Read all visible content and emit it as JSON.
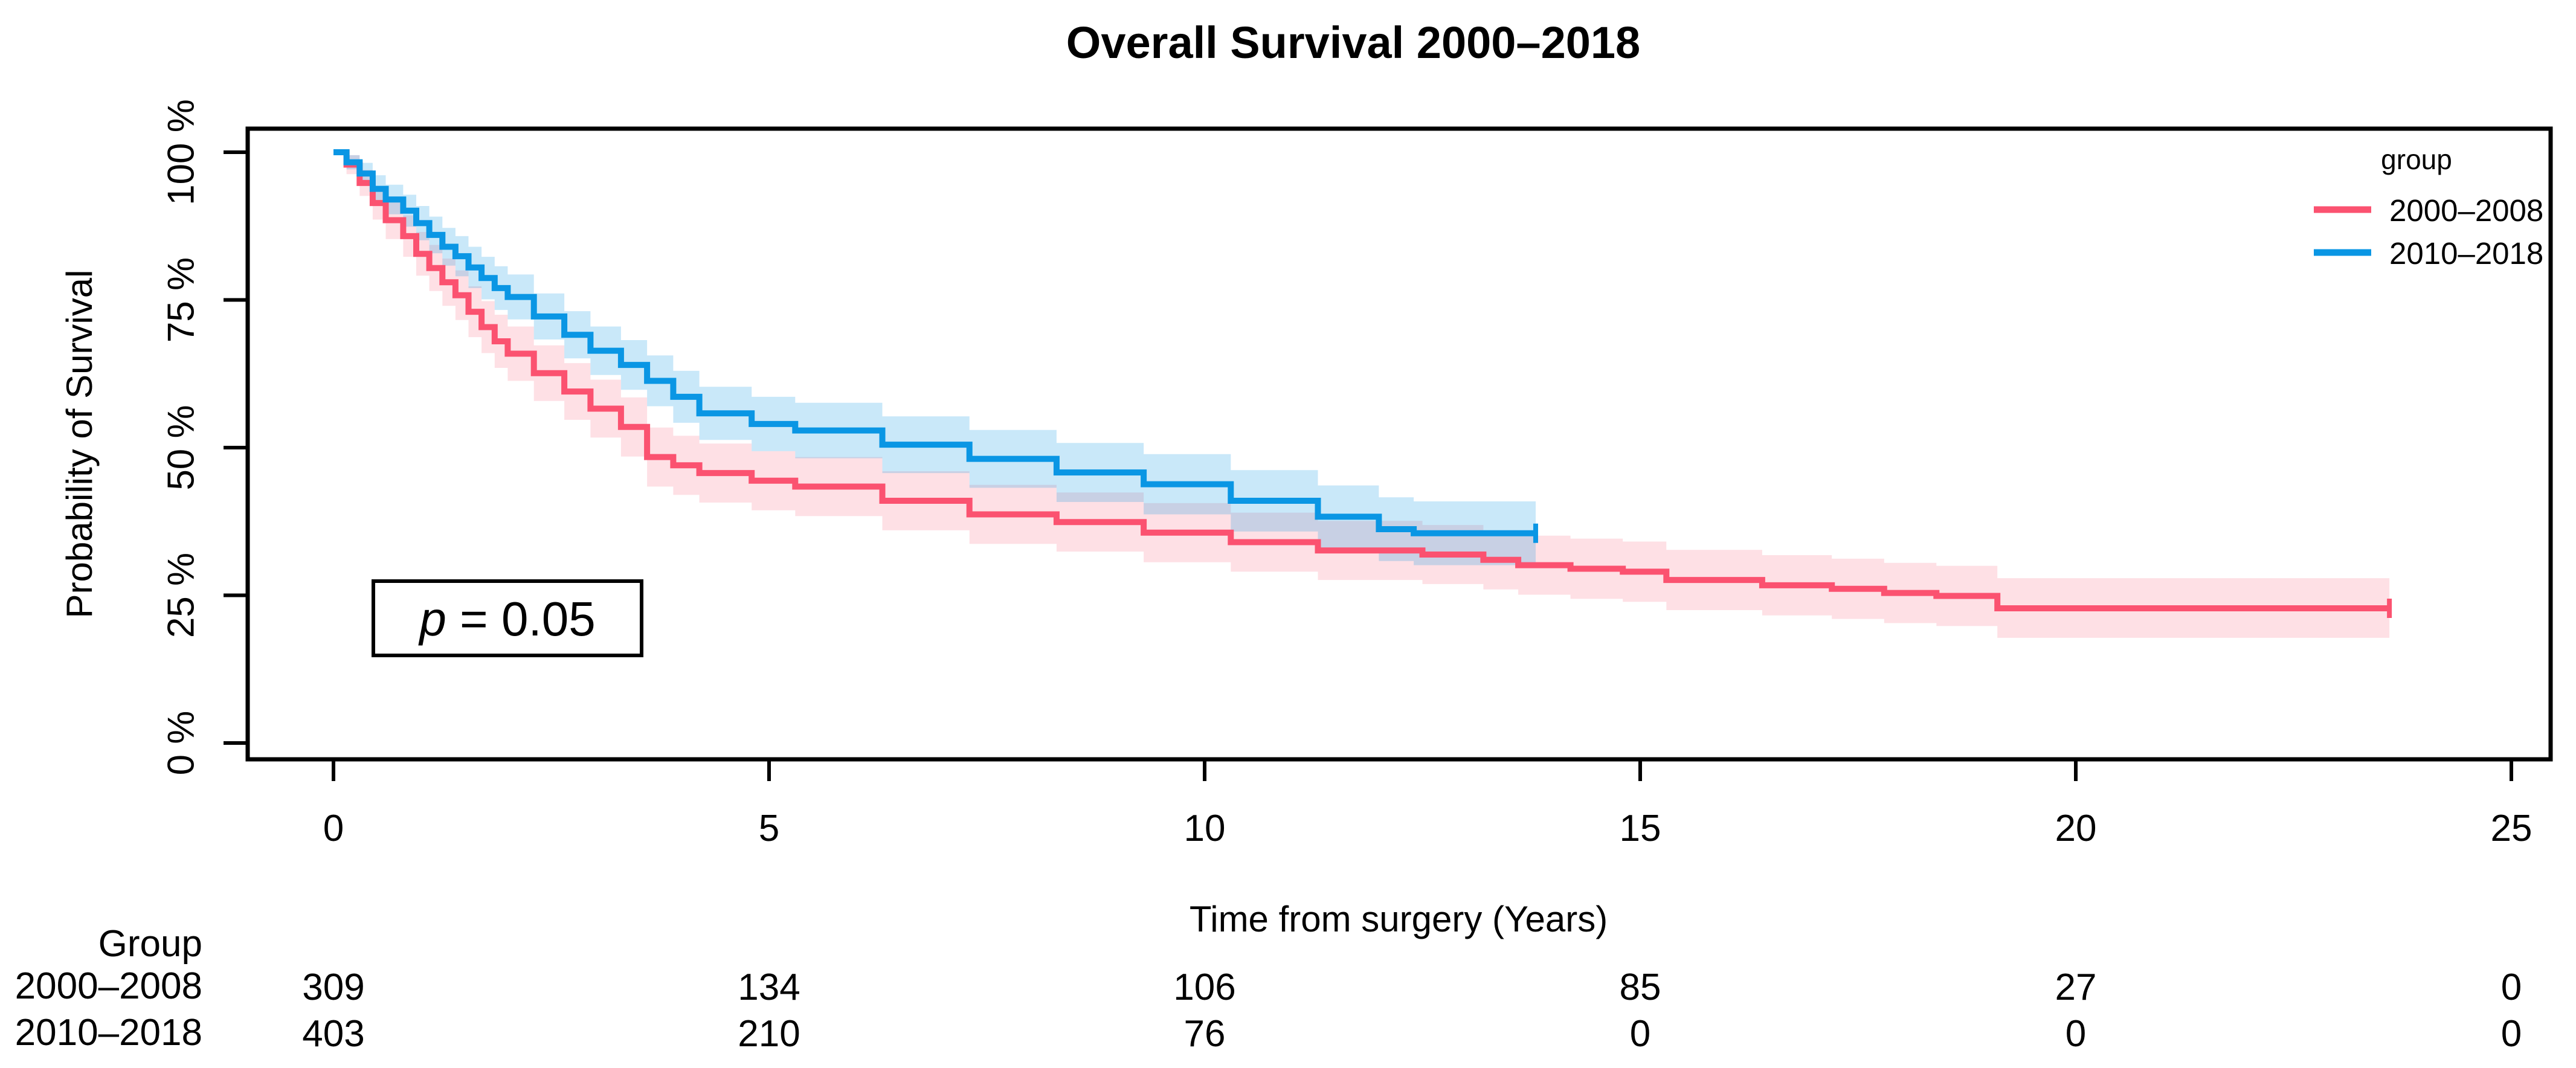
{
  "page": {
    "background": "#ffffff"
  },
  "chart_data": {
    "type": "line",
    "subtype": "kaplan-meier-step-curves-with-confidence-bands",
    "title": "Overall Survival 2000–2018",
    "xlabel": "Time from surgery (Years)",
    "ylabel": "Probability of Survival",
    "xlim": [
      0,
      25.5
    ],
    "ylim_percent": [
      0,
      100
    ],
    "grid": false,
    "x_ticks": [
      0,
      5,
      10,
      15,
      20,
      25
    ],
    "y_ticks": [
      {
        "value": 0,
        "label": "0 %"
      },
      {
        "value": 25,
        "label": "25 %"
      },
      {
        "value": 50,
        "label": "50 %"
      },
      {
        "value": 75,
        "label": "75 %"
      },
      {
        "value": 100,
        "label": "100 %"
      }
    ],
    "legend": {
      "title": "group",
      "position": "top-right-inside"
    },
    "pvalue_label": "p = 0.05",
    "colors": {
      "group_2000_2008": "#fb5270",
      "group_2010_2018": "#0a96e4",
      "axis": "#000000",
      "background": "#ffffff"
    },
    "series_point_format": [
      "time_years",
      "survival_pct",
      "ci_low_pct",
      "ci_high_pct"
    ],
    "series": [
      {
        "name": "2000–2008",
        "color": "#fb5270",
        "band_opacity": 0.18,
        "censor_tick_at_end": true,
        "points": [
          [
            0,
            100,
            100,
            100
          ],
          [
            0.15,
            97.9,
            96.3,
            99.5
          ],
          [
            0.3,
            94.8,
            92.6,
            97.0
          ],
          [
            0.45,
            91.4,
            88.6,
            94.2
          ],
          [
            0.6,
            88.5,
            85.3,
            91.7
          ],
          [
            0.8,
            85.8,
            82.3,
            89.3
          ],
          [
            0.95,
            82.8,
            79.1,
            86.5
          ],
          [
            1.1,
            80.4,
            76.5,
            84.3
          ],
          [
            1.25,
            78.0,
            74.0,
            82.0
          ],
          [
            1.4,
            75.8,
            71.6,
            80.0
          ],
          [
            1.55,
            73.0,
            68.7,
            77.3
          ],
          [
            1.7,
            70.4,
            66.0,
            74.8
          ],
          [
            1.85,
            68.0,
            63.5,
            72.5
          ],
          [
            2.0,
            65.9,
            61.3,
            70.5
          ],
          [
            2.3,
            62.6,
            57.9,
            67.3
          ],
          [
            2.65,
            59.5,
            54.7,
            64.3
          ],
          [
            2.95,
            56.6,
            51.7,
            61.5
          ],
          [
            3.3,
            53.5,
            48.5,
            58.5
          ],
          [
            3.6,
            48.4,
            43.4,
            53.4
          ],
          [
            3.9,
            47.0,
            42.0,
            52.0
          ],
          [
            4.2,
            45.7,
            40.7,
            50.7
          ],
          [
            4.8,
            44.4,
            39.4,
            49.4
          ],
          [
            5.3,
            43.4,
            38.4,
            48.4
          ],
          [
            6.3,
            41.0,
            36.0,
            46.0
          ],
          [
            7.3,
            38.7,
            33.7,
            43.7
          ],
          [
            8.3,
            37.4,
            32.4,
            42.4
          ],
          [
            9.3,
            35.6,
            30.6,
            40.6
          ],
          [
            10.3,
            34.0,
            29.0,
            39.0
          ],
          [
            11.3,
            32.6,
            27.6,
            37.6
          ],
          [
            12.5,
            31.9,
            26.9,
            36.9
          ],
          [
            13.2,
            31.0,
            26.0,
            36.0
          ],
          [
            13.6,
            30.1,
            25.1,
            35.1
          ],
          [
            14.2,
            29.5,
            24.4,
            34.6
          ],
          [
            14.8,
            29.0,
            23.9,
            34.1
          ],
          [
            15.3,
            27.6,
            22.5,
            32.7
          ],
          [
            16.4,
            26.7,
            21.6,
            31.8
          ],
          [
            17.2,
            26.1,
            21.0,
            31.2
          ],
          [
            17.8,
            25.4,
            20.3,
            30.5
          ],
          [
            18.4,
            24.9,
            19.8,
            30.0
          ],
          [
            19.1,
            22.8,
            17.8,
            27.9
          ],
          [
            23.6,
            22.8,
            17.8,
            27.9
          ]
        ]
      },
      {
        "name": "2010–2018",
        "color": "#0a96e4",
        "band_opacity": 0.22,
        "censor_tick_at_end": true,
        "points": [
          [
            0,
            100,
            100,
            100
          ],
          [
            0.15,
            98.3,
            97.1,
            99.5
          ],
          [
            0.3,
            96.4,
            94.6,
            98.2
          ],
          [
            0.45,
            93.8,
            91.5,
            96.1
          ],
          [
            0.6,
            92.0,
            89.5,
            94.5
          ],
          [
            0.8,
            90.1,
            87.4,
            92.8
          ],
          [
            0.95,
            88.0,
            85.1,
            90.9
          ],
          [
            1.1,
            86.0,
            82.9,
            89.1
          ],
          [
            1.25,
            84.0,
            80.8,
            87.2
          ],
          [
            1.4,
            82.4,
            79.0,
            85.8
          ],
          [
            1.55,
            80.5,
            77.0,
            84.0
          ],
          [
            1.7,
            78.7,
            75.1,
            82.3
          ],
          [
            1.85,
            77.0,
            73.3,
            80.7
          ],
          [
            2.0,
            75.5,
            71.7,
            79.3
          ],
          [
            2.3,
            72.2,
            68.3,
            76.1
          ],
          [
            2.65,
            69.1,
            65.1,
            73.1
          ],
          [
            2.95,
            66.4,
            62.3,
            70.5
          ],
          [
            3.3,
            64.0,
            59.8,
            68.2
          ],
          [
            3.6,
            61.3,
            57.0,
            65.6
          ],
          [
            3.9,
            58.6,
            54.2,
            63.0
          ],
          [
            4.2,
            55.8,
            51.3,
            60.3
          ],
          [
            4.8,
            54.0,
            49.4,
            58.6
          ],
          [
            5.3,
            52.9,
            48.2,
            57.6
          ],
          [
            6.3,
            50.5,
            45.7,
            55.3
          ],
          [
            7.3,
            48.1,
            43.2,
            53.0
          ],
          [
            8.3,
            45.8,
            40.8,
            50.8
          ],
          [
            9.3,
            43.8,
            38.7,
            48.9
          ],
          [
            10.3,
            41.0,
            35.8,
            46.2
          ],
          [
            11.3,
            38.3,
            33.0,
            43.6
          ],
          [
            12.0,
            36.2,
            30.8,
            41.6
          ],
          [
            12.4,
            35.5,
            30.1,
            40.9
          ],
          [
            13.8,
            35.5,
            30.1,
            40.9
          ]
        ]
      }
    ],
    "risk_table": {
      "header": "Group",
      "times": [
        0,
        5,
        10,
        15,
        20,
        25
      ],
      "rows": [
        {
          "label": "2000–2008",
          "color": "#fb5270",
          "values": [
            309,
            134,
            106,
            85,
            27,
            0
          ]
        },
        {
          "label": "2010–2018",
          "color": "#0a96e4",
          "values": [
            403,
            210,
            76,
            0,
            0,
            0
          ]
        }
      ]
    }
  }
}
